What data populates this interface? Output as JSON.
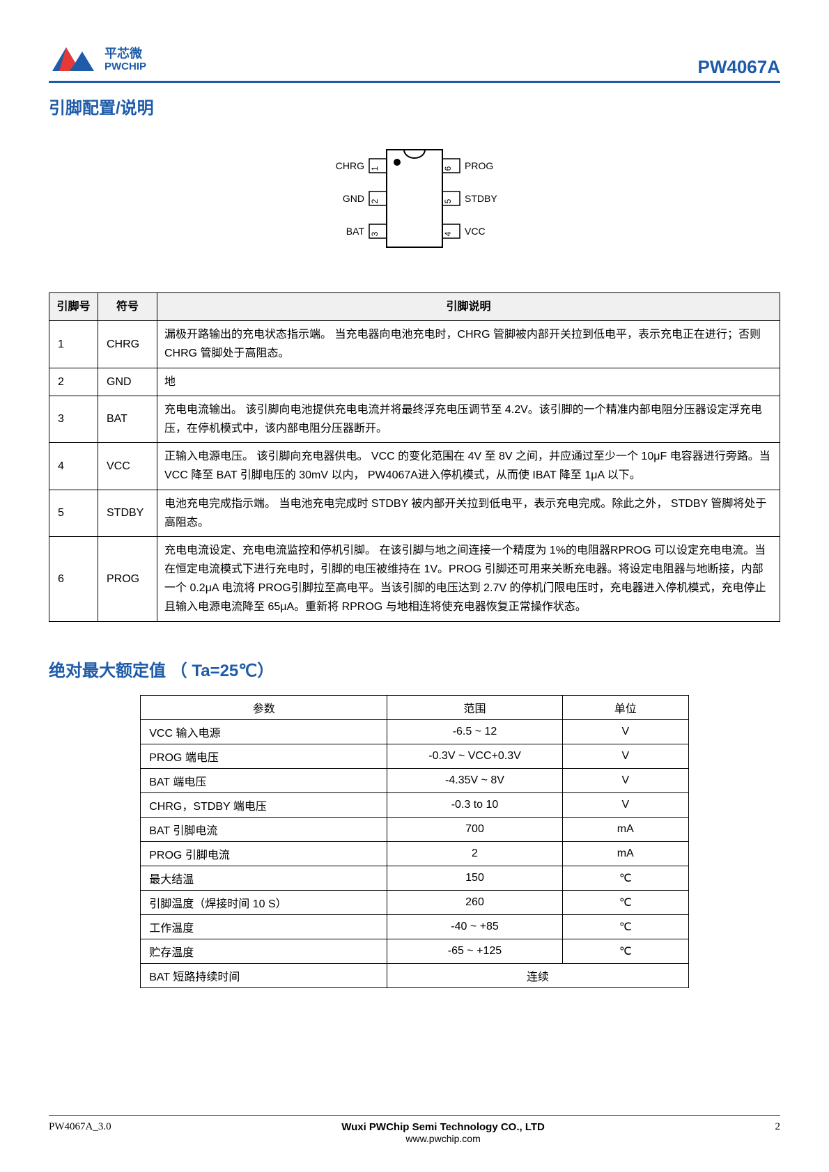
{
  "header": {
    "logo_cn": "平芯微",
    "logo_en": "PWCHIP",
    "product": "PW4067A",
    "logo_colors": {
      "blue": "#1e5ba8",
      "red": "#e63936"
    }
  },
  "section1": {
    "title": "引脚配置/说明"
  },
  "diagram": {
    "pins_left": [
      {
        "num": "1",
        "label": "CHRG"
      },
      {
        "num": "2",
        "label": "GND"
      },
      {
        "num": "3",
        "label": "BAT"
      }
    ],
    "pins_right": [
      {
        "num": "6",
        "label": "PROG"
      },
      {
        "num": "5",
        "label": "STDBY"
      },
      {
        "num": "4",
        "label": "VCC"
      }
    ]
  },
  "pin_table": {
    "headers": [
      "引脚号",
      "符号",
      "引脚说明"
    ],
    "rows": [
      {
        "pin": "1",
        "sym": "CHRG",
        "desc": "漏极开路输出的充电状态指示端。 当充电器向电池充电时，CHRG 管脚被内部开关拉到低电平，表示充电正在进行；否则 CHRG 管脚处于高阻态。"
      },
      {
        "pin": "2",
        "sym": "GND",
        "desc": "地"
      },
      {
        "pin": "3",
        "sym": "BAT",
        "desc": "充电电流输出。 该引脚向电池提供充电电流并将最终浮充电压调节至 4.2V。该引脚的一个精准内部电阻分压器设定浮充电压，在停机模式中，该内部电阻分压器断开。"
      },
      {
        "pin": "4",
        "sym": "VCC",
        "desc": "正输入电源电压。 该引脚向充电器供电。 VCC 的变化范围在 4V 至 8V 之间，并应通过至少一个 10μF 电容器进行旁路。当 VCC 降至 BAT 引脚电压的 30mV 以内， PW4067A进入停机模式，从而使 IBAT 降至 1μA 以下。"
      },
      {
        "pin": "5",
        "sym": "STDBY",
        "desc": "电池充电完成指示端。 当电池充电完成时 STDBY 被内部开关拉到低电平，表示充电完成。除此之外， STDBY 管脚将处于高阻态。"
      },
      {
        "pin": "6",
        "sym": "PROG",
        "desc": "充电电流设定、充电电流监控和停机引脚。 在该引脚与地之间连接一个精度为 1%的电阻器RPROG 可以设定充电电流。当在恒定电流模式下进行充电时，引脚的电压被维持在 1V。PROG 引脚还可用来关断充电器。将设定电阻器与地断接，内部一个 0.2μA 电流将 PROG引脚拉至高电平。当该引脚的电压达到 2.7V 的停机门限电压时，充电器进入停机模式，充电停止且输入电源电流降至 65μA。重新将 RPROG 与地相连将使充电器恢复正常操作状态。"
      }
    ]
  },
  "section2": {
    "title": "绝对最大额定值  （ Ta=25℃）"
  },
  "ratings_table": {
    "headers": [
      "参数",
      "范围",
      "单位"
    ],
    "rows": [
      {
        "param": "VCC 输入电源",
        "range": "-6.5 ~ 12",
        "unit": "V"
      },
      {
        "param": "PROG 端电压",
        "range": "-0.3V ~ VCC+0.3V",
        "unit": "V"
      },
      {
        "param": "BAT 端电压",
        "range": "-4.35V ~ 8V",
        "unit": "V"
      },
      {
        "param": "CHRG，STDBY 端电压",
        "range": "-0.3 to 10",
        "unit": "V"
      },
      {
        "param": "BAT 引脚电流",
        "range": "700",
        "unit": "mA"
      },
      {
        "param": "PROG 引脚电流",
        "range": "2",
        "unit": "mA"
      },
      {
        "param": "最大结温",
        "range": "150",
        "unit": "℃"
      },
      {
        "param": "引脚温度（焊接时间 10 S）",
        "range": "260",
        "unit": "℃"
      },
      {
        "param": "工作温度",
        "range": "-40 ~ +85",
        "unit": "℃"
      },
      {
        "param": "贮存温度",
        "range": "-65 ~ +125",
        "unit": "℃"
      }
    ],
    "last_row": {
      "param": "BAT 短路持续时间",
      "merged": "连续"
    }
  },
  "footer": {
    "version": "PW4067A_3.0",
    "company": "Wuxi PWChip Semi Technology CO., LTD",
    "url": "www.pwchip.com",
    "page": "2"
  }
}
